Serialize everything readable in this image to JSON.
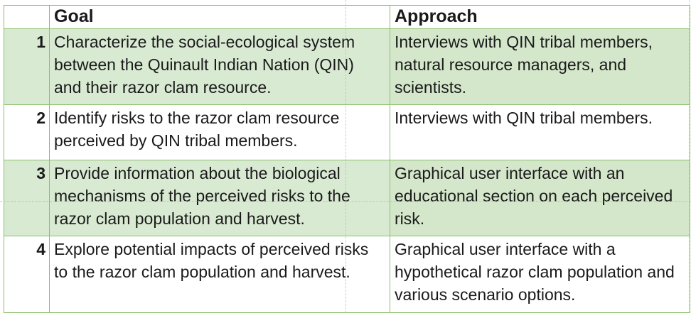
{
  "table": {
    "headers": {
      "number": "",
      "goal": "Goal",
      "approach": "Approach"
    },
    "rows": [
      {
        "number": "1",
        "goal": "Characterize the social-ecological system between the Quinault Indian Nation (QIN) and their razor clam resource.",
        "approach": "Interviews with QIN tribal members, natural resource managers, and scientists."
      },
      {
        "number": "2",
        "goal": "Identify risks to the razor clam resource perceived by QIN tribal members.",
        "approach": "Interviews with QIN tribal members."
      },
      {
        "number": "3",
        "goal": "Provide information about the biological mechanisms of the perceived risks to the razor clam population and harvest.",
        "approach": "Graphical user interface with an educational section on each perceived risk."
      },
      {
        "number": "4",
        "goal": "Explore potential impacts of perceived risks to the razor clam population and harvest.",
        "approach": "Graphical user interface with a hypothetical razor clam population and various scenario options."
      }
    ]
  },
  "colors": {
    "border": "#8cbf6a",
    "shaded_row": "#d9ead3",
    "plain_row": "#ffffff"
  }
}
